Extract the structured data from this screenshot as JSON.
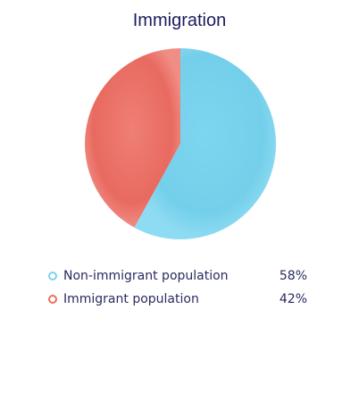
{
  "chart_data": {
    "type": "pie",
    "title": "Immigration",
    "slices": [
      {
        "label": "Non-immigrant population",
        "value": 58,
        "display": "58%",
        "color": "#7dd3ef"
      },
      {
        "label": "Immigrant population",
        "value": 42,
        "display": "42%",
        "color": "#ec6e64"
      }
    ],
    "legend_position": "bottom"
  }
}
